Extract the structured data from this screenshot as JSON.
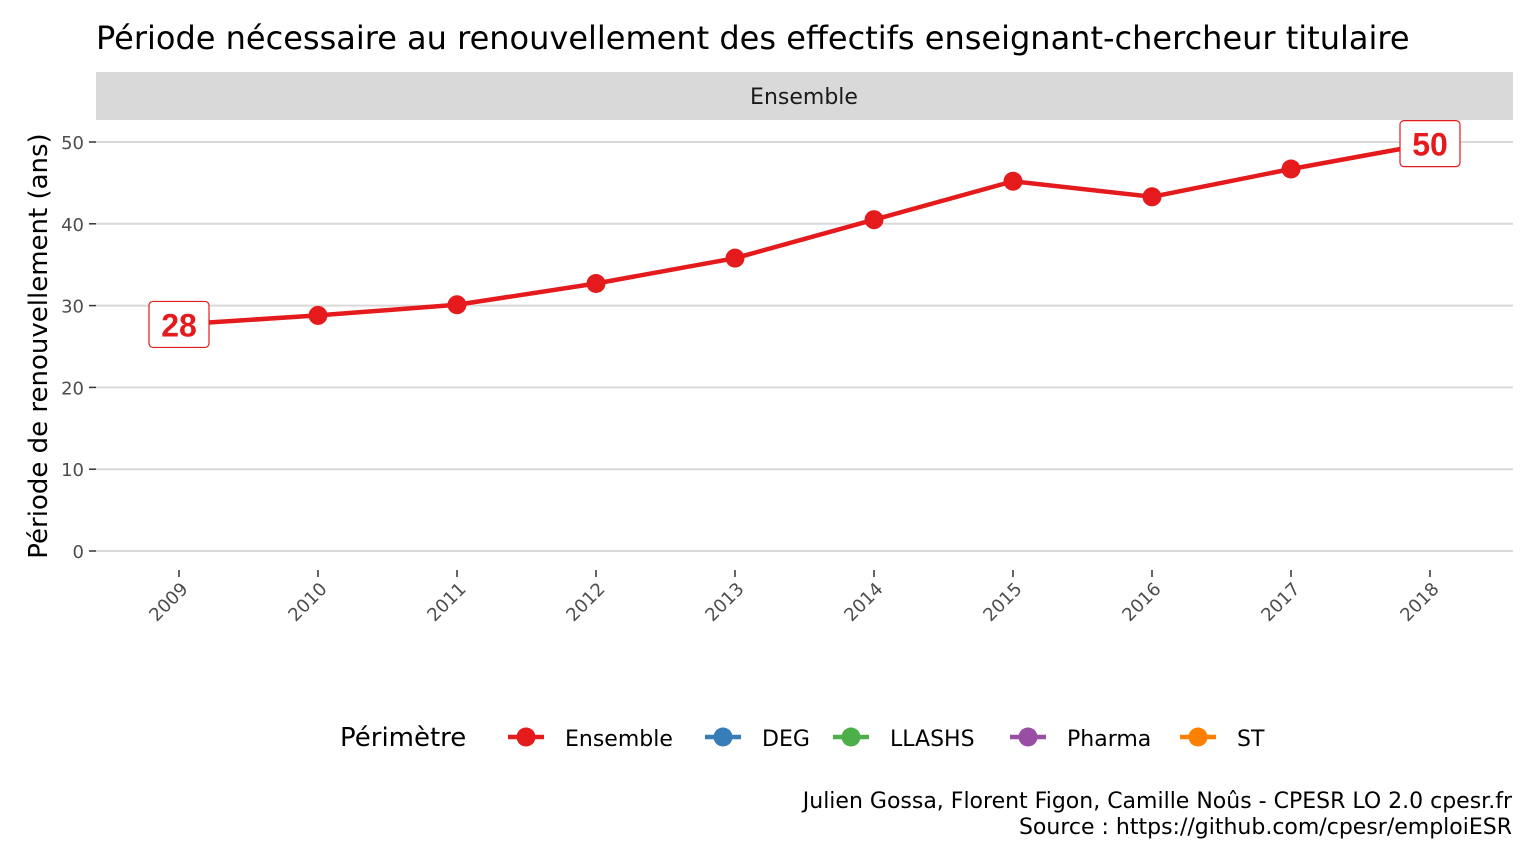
{
  "chart_data": {
    "type": "line",
    "title": "Période nécessaire au renouvellement des effectifs enseignant-chercheur titulaire",
    "facet_label": "Ensemble",
    "xlabel": "",
    "ylabel": "Période de renouvellement (ans)",
    "x": [
      "2009",
      "2010",
      "2011",
      "2012",
      "2013",
      "2014",
      "2015",
      "2016",
      "2017",
      "2018"
    ],
    "y_ticks": [
      "0",
      "10",
      "20",
      "30",
      "40",
      "50"
    ],
    "ylim": [
      0,
      55
    ],
    "grid": true,
    "series": [
      {
        "name": "Ensemble",
        "color": "#E41A1C",
        "values": [
          27.7,
          28.8,
          30.1,
          32.7,
          35.8,
          40.5,
          45.2,
          43.3,
          46.7,
          49.8
        ]
      }
    ],
    "data_labels": [
      {
        "x": "2009",
        "text": "28"
      },
      {
        "x": "2018",
        "text": "50"
      }
    ],
    "legend": {
      "position": "bottom",
      "title": "Périmètre",
      "items": [
        {
          "label": "Ensemble",
          "color": "#E41A1C"
        },
        {
          "label": "DEG",
          "color": "#377EB8"
        },
        {
          "label": "LLASHS",
          "color": "#4DAF4A"
        },
        {
          "label": "Pharma",
          "color": "#984EA3"
        },
        {
          "label": "ST",
          "color": "#FF7F00"
        }
      ]
    }
  },
  "caption": {
    "line1": "Julien Gossa, Florent Figon, Camille Noûs - CPESR LO 2.0 cpesr.fr",
    "line2": "Source : https://github.com/cpesr/emploiESR"
  }
}
